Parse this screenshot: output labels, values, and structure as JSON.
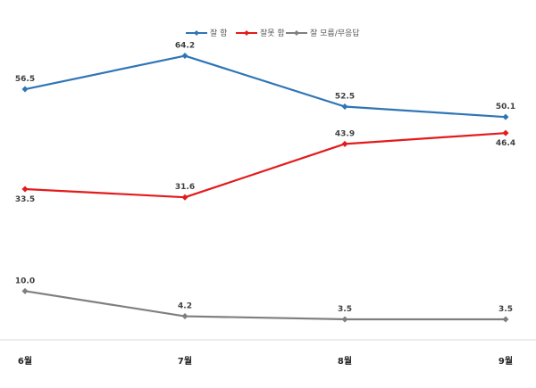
{
  "chart_data": {
    "type": "line",
    "title": "",
    "xlabel": "",
    "ylabel": "",
    "categories": [
      "6월",
      "7월",
      "8월",
      "9월"
    ],
    "ylim": [
      0,
      75
    ],
    "grid": false,
    "legend_position": "top-center",
    "series": [
      {
        "name": "잘 함",
        "color": "#2E75B6",
        "values": [
          56.5,
          64.2,
          52.5,
          50.1
        ],
        "label_placement": "above"
      },
      {
        "name": "잘못 함",
        "color": "#E31B1B",
        "values": [
          33.5,
          31.6,
          43.9,
          46.4
        ],
        "label_placement": [
          "below",
          "above",
          "above",
          "below"
        ]
      },
      {
        "name": "잘 모름/무응답",
        "color": "#7F7F7F",
        "values": [
          10.0,
          4.2,
          3.5,
          3.5
        ],
        "label_placement": "above"
      }
    ]
  }
}
